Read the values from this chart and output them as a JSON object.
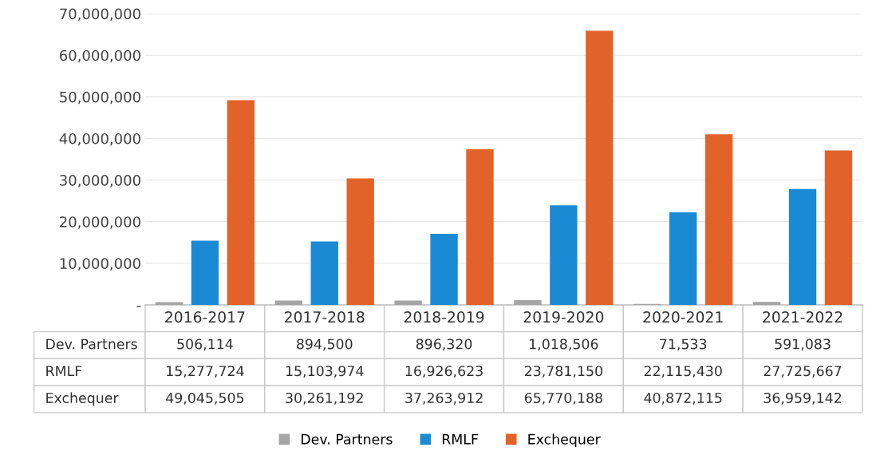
{
  "chart_data": {
    "type": "bar",
    "categories": [
      "2016-2017",
      "2017-2018",
      "2018-2019",
      "2019-2020",
      "2020-2021",
      "2021-2022"
    ],
    "series": [
      {
        "name": "Dev. Partners",
        "color": "#a5a5a5",
        "values": [
          506114,
          894500,
          896320,
          1018506,
          71533,
          591083
        ],
        "value_labels": [
          "506,114",
          "894,500",
          "896,320",
          "1,018,506",
          "71,533",
          "591,083"
        ]
      },
      {
        "name": "RMLF",
        "color": "#1a8ad4",
        "values": [
          15277724,
          15103974,
          16926623,
          23781150,
          22115430,
          27725667
        ],
        "value_labels": [
          "15,277,724",
          "15,103,974",
          "16,926,623",
          "23,781,150",
          "22,115,430",
          "27,725,667"
        ]
      },
      {
        "name": "Exchequer",
        "color": "#e2622a",
        "values": [
          49045505,
          30261192,
          37263912,
          65770188,
          40872115,
          36959142
        ],
        "value_labels": [
          "49,045,505",
          "30,261,192",
          "37,263,912",
          "65,770,188",
          "40,872,115",
          "36,959,142"
        ]
      }
    ],
    "ylim": [
      0,
      70000000
    ],
    "yticks": [
      {
        "value": 0,
        "label": "-"
      },
      {
        "value": 10000000,
        "label": "10,000,000"
      },
      {
        "value": 20000000,
        "label": "20,000,000"
      },
      {
        "value": 30000000,
        "label": "30,000,000"
      },
      {
        "value": 40000000,
        "label": "40,000,000"
      },
      {
        "value": 50000000,
        "label": "50,000,000"
      },
      {
        "value": 60000000,
        "label": "60,000,000"
      },
      {
        "value": 70000000,
        "label": "70,000,000"
      }
    ],
    "grid": "y",
    "legend": "bottom"
  }
}
